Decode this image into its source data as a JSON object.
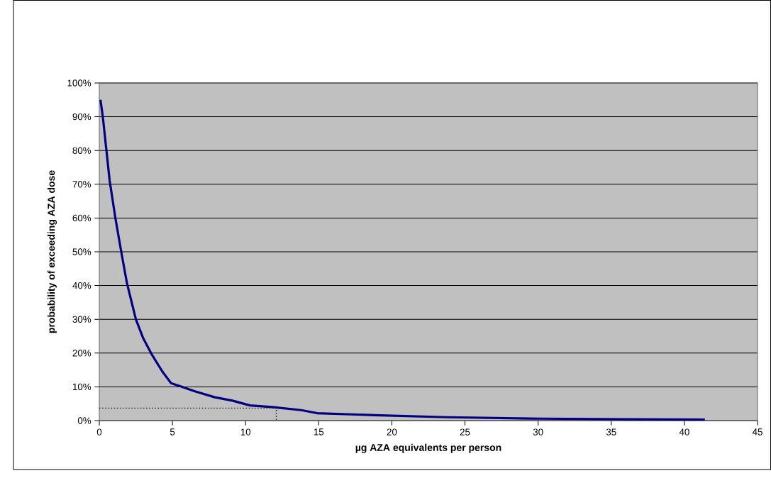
{
  "chart_data": {
    "type": "line",
    "xlabel": "µg AZA equivalents per person",
    "ylabel": "probability of exceeding AZA dose",
    "xlim": [
      0,
      45
    ],
    "ylim": [
      0,
      100
    ],
    "xticks": [
      0,
      5,
      10,
      15,
      20,
      25,
      30,
      35,
      40,
      45
    ],
    "yticks": [
      {
        "value": 0,
        "label": "0%"
      },
      {
        "value": 10,
        "label": "10%"
      },
      {
        "value": 20,
        "label": "20%"
      },
      {
        "value": 30,
        "label": "30%"
      },
      {
        "value": 40,
        "label": "40%"
      },
      {
        "value": 50,
        "label": "50%"
      },
      {
        "value": 60,
        "label": "60%"
      },
      {
        "value": 70,
        "label": "70%"
      },
      {
        "value": 80,
        "label": "80%"
      },
      {
        "value": 90,
        "label": "90%"
      },
      {
        "value": 100,
        "label": "100%"
      }
    ],
    "grid": "y",
    "marker": "none",
    "series": [
      {
        "color": "#000080",
        "line_style": "solid",
        "x": [
          0.08,
          0.24,
          0.71,
          1.1,
          1.5,
          1.9,
          2.5,
          3.0,
          3.6,
          4.3,
          4.9,
          5.6,
          6.5,
          7.9,
          9.1,
          10.3,
          11.8,
          13.8,
          14.9,
          18.8,
          23.8,
          29.4,
          36.1,
          41.4
        ],
        "values": [
          95,
          90,
          71,
          60,
          50,
          40.5,
          30,
          24.4,
          19.5,
          14.6,
          11.1,
          10.1,
          8.7,
          6.9,
          5.9,
          4.5,
          4.0,
          3.1,
          2.2,
          1.6,
          1.0,
          0.6,
          0.4,
          0.3
        ]
      },
      {
        "color": "#000000",
        "line_style": "dotted",
        "x": [
          0,
          12.1,
          12.1
        ],
        "values": [
          3.7,
          3.7,
          0
        ]
      }
    ]
  }
}
